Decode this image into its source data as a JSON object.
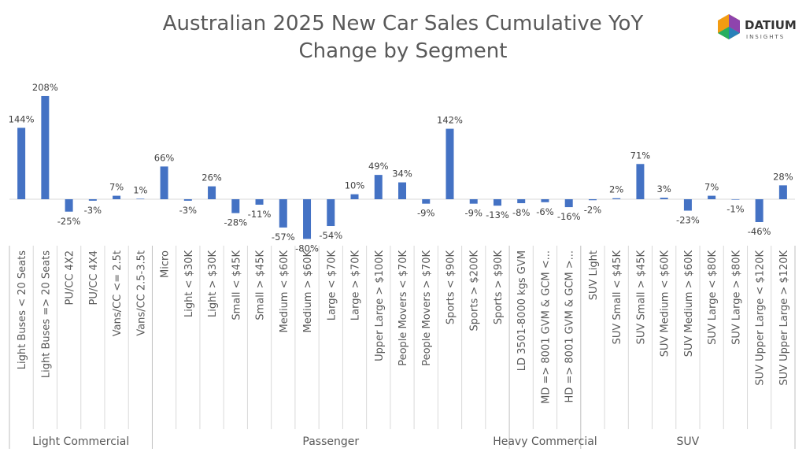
{
  "logo": {
    "name": "DATIUM",
    "tagline": "INSIGHTS"
  },
  "chart_data": {
    "type": "bar",
    "title": [
      "Australian 2025 New Car Sales Cumulative YoY",
      "Change by Segment"
    ],
    "color": "#4472c4",
    "groups": [
      {
        "name": "Light Commercial",
        "categories": [
          "Light Buses < 20 Seats",
          "Light Buses => 20 Seats",
          "PU/CC 4X2",
          "PU/CC 4X4",
          "Vans/CC <= 2.5t",
          "Vans/CC 2.5-3.5t"
        ]
      },
      {
        "name": "Passenger",
        "categories": [
          "Micro",
          "Light < $30K",
          "Light > $30K",
          "Small < $45K",
          "Small > $45K",
          "Medium < $60K",
          "Medium > $60K",
          "Large < $70K",
          "Large > $70K",
          "Upper Large > $100K",
          "People Movers < $70K",
          "People Movers > $70K",
          "Sports < $90K",
          "Sports > $200K",
          "Sports > $90K"
        ]
      },
      {
        "name": "Heavy Commercial",
        "categories": [
          "LD 3501-8000 kgs GVM",
          "MD => 8001 GVM & GCM <...",
          "HD => 8001 GVM & GCM >..."
        ]
      },
      {
        "name": "SUV",
        "categories": [
          "SUV Light",
          "SUV Small < $45K",
          "SUV Small > $45K",
          "SUV Medium < $60K",
          "SUV Medium > $60K",
          "SUV Large < $80K",
          "SUV Large > $80K",
          "SUV Upper Large < $120K",
          "SUV Upper Large > $120K"
        ]
      }
    ],
    "values": [
      144,
      208,
      -25,
      -3,
      7,
      1,
      66,
      -3,
      26,
      -28,
      -11,
      -57,
      -80,
      -54,
      10,
      49,
      34,
      -9,
      142,
      -9,
      -13,
      -8,
      -6,
      -16,
      -2,
      2,
      71,
      3,
      -23,
      7,
      -1,
      -46,
      28
    ],
    "value_labels": [
      "144%",
      "208%",
      "-25%",
      "-3%",
      "7%",
      "1%",
      "66%",
      "-3%",
      "26%",
      "-28%",
      "-11%",
      "-57%",
      "-80%",
      "-54%",
      "10%",
      "49%",
      "34%",
      "-9%",
      "142%",
      "-9%",
      "-13%",
      "-8%",
      "-6%",
      "-16%",
      "-2%",
      "2%",
      "71%",
      "3%",
      "-23%",
      "7%",
      "-1%",
      "-46%",
      "28%"
    ]
  }
}
